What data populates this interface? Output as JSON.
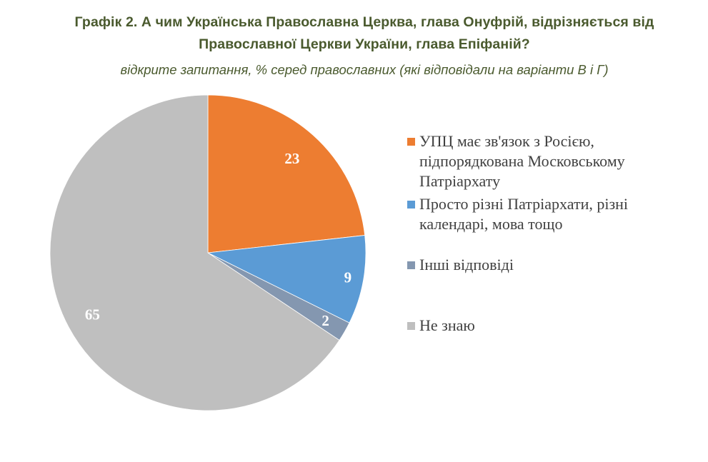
{
  "title": {
    "line1": "Графік 2. А чим Українська Православна Церква, глава Онуфрій, відрізняється від",
    "line2": "Православної Церкви України, глава Епіфаній?"
  },
  "subtitle": "відкрите запитання, % серед православних (які відповідали на варіанти В і Г)",
  "legend": {
    "items": [
      {
        "label_lines": [
          "УПЦ має зв'язок з Росією,",
          "підпорядкована Московському",
          "Патріархату"
        ],
        "color": "#ED7D31"
      },
      {
        "label_lines": [
          "Просто різні Патріархати, різні",
          "календарі, мова тощо"
        ],
        "color": "#5B9BD5"
      },
      {
        "label_lines": [
          "Інші відповіді"
        ],
        "color": "#8497B0"
      },
      {
        "label_lines": [
          "Не знаю"
        ],
        "color": "#BFBFBF"
      }
    ]
  },
  "slices": [
    {
      "value": "23"
    },
    {
      "value": "9"
    },
    {
      "value": "2"
    },
    {
      "value": "65"
    }
  ],
  "chart_data": {
    "type": "pie",
    "title": "Графік 2. А чим Українська Православна Церква, глава Онуфрій, відрізняється від Православної Церкви України, глава Епіфаній?",
    "subtitle": "відкрите запитання, % серед православних (які відповідали на варіанти В і Г)",
    "categories": [
      "УПЦ має зв'язок з Росією, підпорядкована Московському Патріархату",
      "Просто різні Патріархати, різні календарі, мова тощо",
      "Інші відповіді",
      "Не знаю"
    ],
    "values": [
      23,
      9,
      2,
      65
    ],
    "colors": [
      "#ED7D31",
      "#5B9BD5",
      "#8497B0",
      "#BFBFBF"
    ],
    "start_angle": "12 o'clock, clockwise",
    "data_labels": true,
    "legend_position": "right"
  }
}
